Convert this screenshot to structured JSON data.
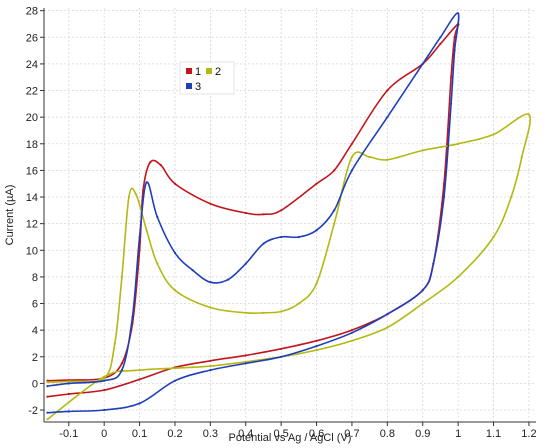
{
  "chart_data": {
    "type": "line",
    "title": "",
    "xlabel": "Potential vs Ag / AgCl (V)",
    "ylabel": "Current (µA)",
    "xlim": [
      -0.17,
      1.22
    ],
    "ylim": [
      -2.9,
      28.2
    ],
    "x_ticks": [
      -0.1,
      0,
      0.1,
      0.2,
      0.3,
      0.4,
      0.5,
      0.6,
      0.7,
      0.8,
      0.9,
      1,
      1.1,
      1.2
    ],
    "x_tick_labels": [
      "-0.1",
      "0",
      "0.1",
      "0.2",
      "0.3",
      "0.4",
      "0.5",
      "0.6",
      "0.7",
      "0.8",
      "0.9",
      "1",
      "1.1",
      "1.2"
    ],
    "y_ticks": [
      -2,
      0,
      2,
      4,
      6,
      8,
      10,
      12,
      14,
      16,
      18,
      20,
      22,
      24,
      26,
      28
    ],
    "y_tick_labels": [
      "-2",
      "0",
      "2",
      "4",
      "6",
      "8",
      "10",
      "12",
      "14",
      "16",
      "18",
      "20",
      "22",
      "24",
      "26",
      "28"
    ],
    "grid": true,
    "legend_position": "top-left",
    "series": [
      {
        "name": "1",
        "color": "#c0161e",
        "x": [
          -0.16,
          -0.1,
          0.0,
          0.05,
          0.08,
          0.1,
          0.11,
          0.13,
          0.16,
          0.2,
          0.3,
          0.4,
          0.45,
          0.5,
          0.6,
          0.65,
          0.7,
          0.8,
          0.9,
          0.95,
          1.0,
          0.99,
          0.98,
          0.96,
          0.93,
          0.9,
          0.8,
          0.7,
          0.6,
          0.5,
          0.4,
          0.3,
          0.2,
          0.1,
          0.0,
          -0.1,
          -0.16
        ],
        "y": [
          0.2,
          0.25,
          0.4,
          1.5,
          4.5,
          10.0,
          14.5,
          16.6,
          16.4,
          15.0,
          13.5,
          12.8,
          12.7,
          13.0,
          15.0,
          16.0,
          18.0,
          22.0,
          24.0,
          25.5,
          27.0,
          26.0,
          23.0,
          15.0,
          9.0,
          7.0,
          5.2,
          4.0,
          3.2,
          2.6,
          2.1,
          1.7,
          1.2,
          0.3,
          -0.5,
          -0.8,
          -1.0
        ]
      },
      {
        "name": "2",
        "color": "#b4b812",
        "x": [
          -0.16,
          -0.1,
          0.0,
          0.03,
          0.05,
          0.07,
          0.09,
          0.12,
          0.15,
          0.2,
          0.3,
          0.4,
          0.45,
          0.5,
          0.55,
          0.6,
          0.65,
          0.7,
          0.75,
          0.8,
          0.9,
          1.0,
          1.1,
          1.2,
          1.18,
          1.15,
          1.1,
          1.0,
          0.9,
          0.8,
          0.7,
          0.6,
          0.5,
          0.3,
          0.1,
          0.0,
          -0.16
        ],
        "y": [
          0.1,
          0.15,
          0.4,
          3.0,
          8.0,
          14.0,
          14.2,
          11.5,
          9.0,
          7.0,
          5.7,
          5.3,
          5.3,
          5.4,
          6.0,
          7.5,
          12.0,
          17.0,
          17.0,
          16.8,
          17.5,
          18.0,
          18.7,
          20.2,
          17.0,
          14.0,
          11.0,
          8.0,
          6.0,
          4.2,
          3.2,
          2.5,
          2.0,
          1.3,
          1.0,
          0.5,
          -2.7
        ]
      },
      {
        "name": "3",
        "color": "#1e3fb8",
        "x": [
          -0.16,
          -0.1,
          0.0,
          0.05,
          0.08,
          0.1,
          0.12,
          0.15,
          0.2,
          0.25,
          0.3,
          0.35,
          0.4,
          0.45,
          0.5,
          0.55,
          0.6,
          0.65,
          0.7,
          0.8,
          0.9,
          0.95,
          1.0,
          0.99,
          0.98,
          0.96,
          0.93,
          0.9,
          0.8,
          0.7,
          0.6,
          0.5,
          0.4,
          0.3,
          0.2,
          0.1,
          0.0,
          -0.1,
          -0.16
        ],
        "y": [
          -0.2,
          0.0,
          0.2,
          1.0,
          5.0,
          11.0,
          15.1,
          12.5,
          9.8,
          8.5,
          7.6,
          7.8,
          9.0,
          10.5,
          11.0,
          11.0,
          11.5,
          13.0,
          16.0,
          20.0,
          24.0,
          26.0,
          27.8,
          25.0,
          21.0,
          14.0,
          9.0,
          7.0,
          5.2,
          3.8,
          2.8,
          2.0,
          1.5,
          1.0,
          0.2,
          -1.5,
          -2.0,
          -2.1,
          -2.2
        ]
      }
    ]
  }
}
